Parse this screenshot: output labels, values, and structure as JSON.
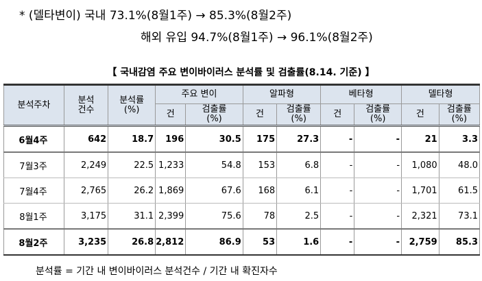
{
  "notes": [
    "* (델타변이) 국내 73.1%(8월1주) → 85.3%(8월2주)",
    "해외 유입 94.7%(8월1주) → 96.1%(8월2주)"
  ],
  "title": "【 국내감염 주요 변이바이러스 분석률 및 검출률(8.14. 기준) 】",
  "table": {
    "headers": [
      "분석주차",
      "분석\n건수",
      "분석률\n(%)"
    ],
    "groups": [
      {
        "name": "주요 변이",
        "sub": [
          "건",
          "검출률\n(%)"
        ]
      },
      {
        "name": "알파형",
        "sub": [
          "건",
          "검출률\n(%)"
        ]
      },
      {
        "name": "베타형",
        "sub": [
          "건",
          "검출률\n(%)"
        ]
      },
      {
        "name": "델타형",
        "sub": [
          "건",
          "검출률\n(%)"
        ]
      }
    ],
    "rows": [
      [
        "6월4주",
        "642",
        "18.7",
        "196",
        "30.5",
        "175",
        "27.3",
        "-",
        "-",
        "21",
        "3.3"
      ],
      [
        "7월3주",
        "2,249",
        "22.5",
        "1,233",
        "54.8",
        "153",
        "6.8",
        "-",
        "-",
        "1,080",
        "48.0"
      ],
      [
        "7월4주",
        "2,765",
        "26.2",
        "1,869",
        "67.6",
        "168",
        "6.1",
        "-",
        "-",
        "1,701",
        "61.5"
      ],
      [
        "8월1주",
        "3,175",
        "31.1",
        "2,399",
        "75.6",
        "78",
        "2.5",
        "-",
        "-",
        "2,321",
        "73.1"
      ],
      [
        "8월2주",
        "3,235",
        "26.8",
        "2,812",
        "86.9",
        "53",
        "1.6",
        "-",
        "-",
        "2,759",
        "85.3"
      ]
    ]
  },
  "footnote": "분석률 = 기간 내 변이바이러스 분석건수 / 기간 내 확진자수"
}
